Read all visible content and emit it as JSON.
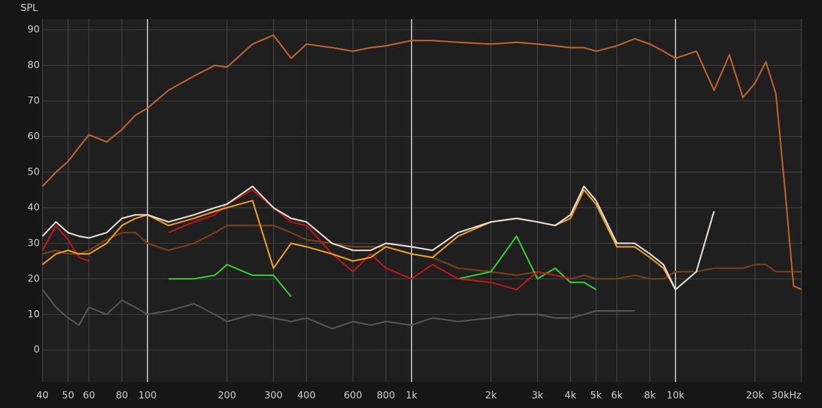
{
  "chart_data": {
    "type": "line",
    "y_label": "SPL",
    "xscale": "log",
    "grid": true,
    "xlim": [
      40,
      30000
    ],
    "ylim": [
      -9,
      93
    ],
    "yticks": [
      0,
      10,
      20,
      30,
      40,
      50,
      60,
      70,
      80,
      90
    ],
    "xticks": [
      40,
      50,
      60,
      80,
      100,
      200,
      300,
      400,
      600,
      800,
      {
        "value": 1000,
        "label": "1k"
      },
      {
        "value": 2000,
        "label": "2k"
      },
      {
        "value": 3000,
        "label": "3k"
      },
      {
        "value": 4000,
        "label": "4k"
      },
      {
        "value": 5000,
        "label": "5k"
      },
      {
        "value": 6000,
        "label": "6k"
      },
      {
        "value": 8000,
        "label": "8k"
      },
      {
        "value": 10000,
        "label": "10k"
      },
      {
        "value": 20000,
        "label": "20k"
      },
      {
        "value": 30000,
        "label": "30kHz"
      }
    ],
    "x": [
      40,
      45,
      50,
      55,
      60,
      70,
      80,
      90,
      100,
      120,
      150,
      180,
      200,
      250,
      300,
      350,
      400,
      500,
      600,
      700,
      800,
      1000,
      1200,
      1500,
      2000,
      2500,
      3000,
      3500,
      4000,
      4500,
      5000,
      6000,
      7000,
      8000,
      9000,
      10000,
      12000,
      14000,
      16000,
      18000,
      20000,
      22000,
      24000,
      26000,
      28000,
      30000
    ],
    "series": [
      {
        "color": "#555555",
        "values": [
          17,
          12,
          9,
          7,
          12,
          10,
          14,
          12,
          10,
          11,
          13,
          10,
          8,
          10,
          9,
          8,
          9,
          6,
          8,
          7,
          8,
          7,
          9,
          8,
          9,
          10,
          10,
          9,
          9,
          10,
          11,
          11,
          11,
          null,
          null,
          null,
          null,
          null,
          null,
          null,
          null,
          null,
          null,
          null,
          null,
          null
        ]
      },
      {
        "color": "#7a4212",
        "values": [
          27,
          28,
          27,
          27,
          28,
          31,
          33,
          33,
          30,
          28,
          30,
          33,
          35,
          35,
          35,
          33,
          31,
          30,
          29,
          29,
          29,
          27,
          26,
          23,
          22,
          21,
          22,
          21,
          20,
          21,
          20,
          20,
          21,
          20,
          20,
          22,
          22,
          23,
          23,
          23,
          24,
          24,
          22,
          22,
          22,
          22
        ]
      },
      {
        "color": "#30d030",
        "values": [
          null,
          null,
          null,
          null,
          null,
          null,
          null,
          null,
          null,
          20,
          20,
          21,
          24,
          21,
          21,
          15,
          null,
          null,
          null,
          null,
          null,
          null,
          null,
          20,
          22,
          32,
          20,
          23,
          19,
          19,
          17,
          null,
          null,
          null,
          null,
          null,
          null,
          null,
          null,
          null,
          null,
          null,
          null,
          null,
          null,
          null
        ]
      },
      {
        "color": "#c01818",
        "values": [
          28,
          35,
          31,
          26,
          25,
          null,
          null,
          null,
          null,
          33,
          36,
          38,
          41,
          45,
          40,
          36,
          35,
          27,
          22,
          27,
          23,
          20,
          24,
          20,
          19,
          17,
          22,
          21,
          20,
          null,
          null,
          null,
          null,
          null,
          null,
          null,
          null,
          null,
          null,
          null,
          null,
          null,
          null,
          null,
          null,
          null
        ]
      },
      {
        "color": "#f0a020",
        "values": [
          24,
          27,
          28,
          27,
          27,
          30,
          35,
          37,
          38,
          35,
          37,
          39,
          40,
          42,
          23,
          30,
          29,
          27,
          25,
          26,
          29,
          27,
          26,
          32,
          36,
          37,
          36,
          35,
          37,
          45,
          41,
          29,
          29,
          26,
          23,
          17,
          null,
          null,
          null,
          null,
          null,
          null,
          null,
          null,
          null,
          null
        ]
      },
      {
        "color": "#e8e0d8",
        "values": [
          32,
          36,
          33,
          32,
          31.5,
          33,
          37,
          38,
          38,
          36,
          38,
          40,
          41,
          46,
          40,
          37,
          36,
          30,
          28,
          28,
          30,
          29,
          28,
          33,
          36,
          37,
          36,
          35,
          38,
          46,
          42,
          30,
          30,
          27,
          24,
          17,
          22,
          39,
          null,
          null,
          null,
          null,
          null,
          null,
          null,
          null
        ]
      },
      {
        "color": "#c0642a",
        "values": [
          46,
          50,
          53,
          57,
          60.5,
          58.5,
          62,
          66,
          68,
          73,
          77,
          80,
          79.5,
          86,
          88.5,
          82,
          86,
          85,
          84,
          85,
          85.5,
          87,
          87,
          86.5,
          86,
          86.5,
          86,
          85.5,
          85,
          85,
          84,
          85.5,
          87.5,
          86,
          84,
          82,
          84,
          73,
          83,
          71,
          75,
          81,
          72,
          45,
          18,
          17
        ]
      }
    ]
  }
}
